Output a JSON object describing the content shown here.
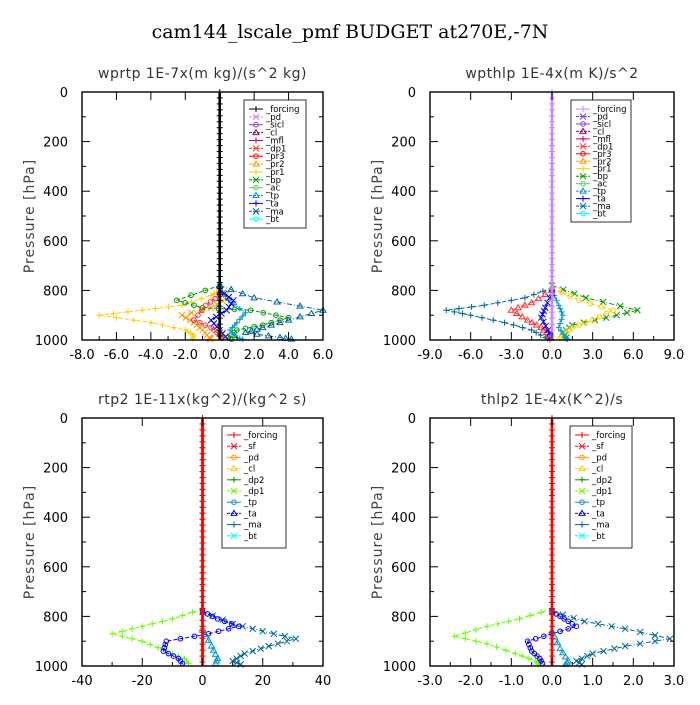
{
  "title": "cam144_lscale_pmf  BUDGET at270E,-7N",
  "colors": {
    "forcing_black": "#000000",
    "forcing_red": "#ff0000",
    "pd": "#ff9900",
    "pd_violet": "#cc88ff",
    "sicl": "#8844cc",
    "cl_purple": "#990066",
    "mfl": "#cc0066",
    "dp1_red": "#ff3333",
    "pr3": "#ff0000",
    "pr2": "#ff9900",
    "pr1": "#ffcc00",
    "bp": "#009900",
    "ac": "#66cc66",
    "tp": "#0099cc",
    "ta": "#0000ff",
    "ma": "#006699",
    "bt": "#00ffff",
    "sf": "#ff0000",
    "cl_yellow": "#ffcc00",
    "dp2": "#009900",
    "dp1_green": "#66ff00"
  },
  "chart_data": [
    {
      "type": "line",
      "title": "wprtp   1E-7x(m kg)/(s^2 kg)",
      "ylabel": "Pressure [hPa]",
      "xlim": [
        -8,
        6
      ],
      "ylim": [
        1000,
        0
      ],
      "xticks": [
        "-8.0",
        "-6.0",
        "-4.0",
        "-2.0",
        "0.0",
        "2.0",
        "4.0",
        "6.0"
      ],
      "xtick_values": [
        -8,
        -6,
        -4,
        -2,
        0,
        2,
        4,
        6
      ],
      "yticks": [
        "0",
        "200",
        "400",
        "600",
        "800",
        "1000"
      ],
      "legend": [
        "_forcing",
        "_pd",
        "_sicl",
        "_cl",
        "_mfl",
        "_dp1",
        "_pr3",
        "_pr2",
        "_pr1",
        "_bp",
        "_ac",
        "_tp",
        "_ta",
        "_ma",
        "_bt"
      ],
      "legend_colors": [
        "#000000",
        "#cc88ff",
        "#8844cc",
        "#990066",
        "#cc0066",
        "#ff3333",
        "#ff0000",
        "#ff9900",
        "#ffcc00",
        "#009900",
        "#66cc66",
        "#0099cc",
        "#0000ff",
        "#006699",
        "#00ffff"
      ],
      "series": [
        {
          "name": "_pr1",
          "color": "#ffcc00",
          "points": [
            [
              0,
              800
            ],
            [
              -0.5,
              820
            ],
            [
              -2.2,
              860
            ],
            [
              -4.5,
              880
            ],
            [
              -7.0,
              900
            ],
            [
              -4.0,
              930
            ],
            [
              -2.0,
              960
            ],
            [
              -1.5,
              980
            ],
            [
              -1.6,
              1000
            ]
          ]
        },
        {
          "name": "_pr2",
          "color": "#ff9900",
          "points": [
            [
              0,
              800
            ],
            [
              0.5,
              830
            ],
            [
              -0.5,
              870
            ],
            [
              -2.2,
              900
            ],
            [
              -1.5,
              930
            ],
            [
              -1.0,
              960
            ],
            [
              -0.6,
              990
            ],
            [
              -0.5,
              1000
            ]
          ]
        },
        {
          "name": "_bp",
          "color": "#009900",
          "points": [
            [
              0,
              780
            ],
            [
              -2.5,
              840
            ],
            [
              -1.0,
              870
            ],
            [
              1.8,
              880
            ],
            [
              4.0,
              910
            ],
            [
              2.5,
              940
            ],
            [
              1.0,
              960
            ],
            [
              0.5,
              990
            ],
            [
              0.8,
              1000
            ]
          ]
        },
        {
          "name": "_ma",
          "color": "#006699",
          "points": [
            [
              0,
              780
            ],
            [
              2.0,
              830
            ],
            [
              6.0,
              880
            ],
            [
              4.0,
              920
            ],
            [
              2.5,
              950
            ],
            [
              1.5,
              970
            ],
            [
              3.5,
              990
            ],
            [
              4.5,
              1000
            ]
          ]
        },
        {
          "name": "_tp",
          "color": "#0099cc",
          "points": [
            [
              0,
              790
            ],
            [
              0.5,
              840
            ],
            [
              1.5,
              890
            ],
            [
              1.0,
              930
            ],
            [
              0.6,
              960
            ],
            [
              1.0,
              990
            ],
            [
              1.5,
              1000
            ]
          ]
        },
        {
          "name": "_ta",
          "color": "#0000ff",
          "points": [
            [
              0,
              800
            ],
            [
              0.8,
              840
            ],
            [
              0.4,
              880
            ],
            [
              -0.5,
              920
            ],
            [
              0.0,
              960
            ],
            [
              0.5,
              1000
            ]
          ]
        },
        {
          "name": "_dp1",
          "color": "#ff3333",
          "points": [
            [
              0,
              820
            ],
            [
              -0.8,
              860
            ],
            [
              -1.5,
              920
            ],
            [
              -0.5,
              950
            ],
            [
              0.0,
              980
            ],
            [
              0.2,
              1000
            ]
          ]
        },
        {
          "name": "_forcing",
          "color": "#000000",
          "points": [
            [
              0,
              0
            ],
            [
              0,
              1000
            ]
          ]
        }
      ]
    },
    {
      "type": "line",
      "title": "wpthlp   1E-4x(m K)/s^2",
      "ylabel": "Pressure [hPa]",
      "xlim": [
        -9,
        9
      ],
      "ylim": [
        1000,
        0
      ],
      "xticks": [
        "-9.0",
        "-6.0",
        "-3.0",
        "0.0",
        "3.0",
        "6.0",
        "9.0"
      ],
      "xtick_values": [
        -9,
        -6,
        -3,
        0,
        3,
        6,
        9
      ],
      "yticks": [
        "0",
        "200",
        "400",
        "600",
        "800",
        "1000"
      ],
      "legend": [
        "_forcing",
        "_pd",
        "_sicl",
        "_cl",
        "_mfl",
        "_dp1",
        "_pr3",
        "_pr2",
        "_pr1",
        "_bp",
        "_ac",
        "_tp",
        "_ta",
        "_ma",
        "_bt"
      ],
      "legend_colors": [
        "#cc88ff",
        "#8844cc",
        "#8844cc",
        "#990066",
        "#cc0066",
        "#ff3333",
        "#ff0000",
        "#ff9900",
        "#ffcc00",
        "#009900",
        "#66cc66",
        "#0099cc",
        "#0000ff",
        "#006699",
        "#00ffff"
      ],
      "series": [
        {
          "name": "_ma",
          "color": "#006699",
          "points": [
            [
              0,
              790
            ],
            [
              -2.0,
              830
            ],
            [
              -5.0,
              860
            ],
            [
              -7.8,
              880
            ],
            [
              -6.0,
              900
            ],
            [
              -3.5,
              930
            ],
            [
              -1.5,
              960
            ],
            [
              -0.5,
              990
            ],
            [
              0.0,
              1000
            ]
          ]
        },
        {
          "name": "_bp",
          "color": "#009900",
          "points": [
            [
              0,
              780
            ],
            [
              2.5,
              830
            ],
            [
              6.3,
              880
            ],
            [
              4.0,
              910
            ],
            [
              1.5,
              940
            ],
            [
              0.8,
              970
            ],
            [
              1.2,
              1000
            ]
          ]
        },
        {
          "name": "_pr1",
          "color": "#ffcc00",
          "points": [
            [
              0,
              790
            ],
            [
              2.0,
              840
            ],
            [
              4.5,
              880
            ],
            [
              3.0,
              920
            ],
            [
              1.5,
              950
            ],
            [
              0.8,
              980
            ],
            [
              0.5,
              1000
            ]
          ]
        },
        {
          "name": "_dp1",
          "color": "#ff3333",
          "points": [
            [
              0,
              800
            ],
            [
              -1.5,
              850
            ],
            [
              -3.0,
              880
            ],
            [
              -1.8,
              920
            ],
            [
              -0.8,
              950
            ],
            [
              -0.2,
              980
            ],
            [
              0.0,
              1000
            ]
          ]
        },
        {
          "name": "_tp",
          "color": "#0099cc",
          "points": [
            [
              0,
              800
            ],
            [
              0.5,
              860
            ],
            [
              0.8,
              900
            ],
            [
              0.5,
              950
            ],
            [
              1.0,
              990
            ],
            [
              1.2,
              1000
            ]
          ]
        },
        {
          "name": "_ta",
          "color": "#0000ff",
          "points": [
            [
              0,
              810
            ],
            [
              -0.5,
              870
            ],
            [
              -0.8,
              910
            ],
            [
              -0.3,
              960
            ],
            [
              0.0,
              1000
            ]
          ]
        },
        {
          "name": "_forcing",
          "color": "#cc88ff",
          "points": [
            [
              0,
              0
            ],
            [
              0,
              1000
            ]
          ]
        }
      ]
    },
    {
      "type": "line",
      "title": "rtp2   1E-11x(kg^2)/(kg^2 s)",
      "ylabel": "Pressure [hPa]",
      "xlim": [
        -40,
        40
      ],
      "ylim": [
        1000,
        0
      ],
      "xticks": [
        "-40",
        "-20",
        "0",
        "20",
        "40"
      ],
      "xtick_values": [
        -40,
        -20,
        0,
        20,
        40
      ],
      "yticks": [
        "0",
        "200",
        "400",
        "600",
        "800",
        "1000"
      ],
      "legend": [
        "_forcing",
        "_sf",
        "_pd",
        "_cl",
        "_dp2",
        "_dp1",
        "_tp",
        "_ta",
        "_ma",
        "_bt"
      ],
      "legend_colors": [
        "#ff0000",
        "#ff0000",
        "#ff9900",
        "#ffcc00",
        "#009900",
        "#66ff00",
        "#0099cc",
        "#0000ff",
        "#006699",
        "#00ffff"
      ],
      "series": [
        {
          "name": "_dp1",
          "color": "#66ff00",
          "points": [
            [
              0,
              770
            ],
            [
              -10,
              810
            ],
            [
              -20,
              840
            ],
            [
              -30,
              870
            ],
            [
              -20,
              900
            ],
            [
              -12,
              940
            ],
            [
              -6,
              970
            ],
            [
              -4,
              1000
            ]
          ]
        },
        {
          "name": "_ma",
          "color": "#006699",
          "points": [
            [
              0,
              780
            ],
            [
              10,
              830
            ],
            [
              20,
              860
            ],
            [
              31,
              890
            ],
            [
              22,
              920
            ],
            [
              14,
              950
            ],
            [
              10,
              980
            ],
            [
              14,
              1000
            ]
          ]
        },
        {
          "name": "_ta",
          "color": "#0000ff",
          "points": [
            [
              0,
              780
            ],
            [
              5,
              810
            ],
            [
              12,
              840
            ],
            [
              2,
              870
            ],
            [
              -12,
              900
            ],
            [
              -13,
              940
            ],
            [
              -8,
              970
            ],
            [
              -6,
              1000
            ]
          ]
        },
        {
          "name": "_tp",
          "color": "#0099cc",
          "points": [
            [
              0,
              850
            ],
            [
              3,
              920
            ],
            [
              5,
              970
            ],
            [
              4,
              1000
            ]
          ]
        },
        {
          "name": "_sf",
          "color": "#ff0000",
          "points": [
            [
              0,
              0
            ],
            [
              0,
              1000
            ]
          ]
        },
        {
          "name": "_forcing",
          "color": "#ff0000",
          "points": [
            [
              0,
              0
            ],
            [
              0,
              1000
            ]
          ]
        }
      ]
    },
    {
      "type": "line",
      "title": "thlp2   1E-4x(K^2)/s",
      "ylabel": "Pressure [hPa]",
      "xlim": [
        -3,
        3
      ],
      "ylim": [
        1000,
        0
      ],
      "xticks": [
        "-3.0",
        "-2.0",
        "-1.0",
        "0.0",
        "1.0",
        "2.0",
        "3.0"
      ],
      "xtick_values": [
        -3,
        -2,
        -1,
        0,
        1,
        2,
        3
      ],
      "yticks": [
        "0",
        "200",
        "400",
        "600",
        "800",
        "1000"
      ],
      "legend": [
        "_forcing",
        "_sf",
        "_pd",
        "_cl",
        "_dp2",
        "_dp1",
        "_tp",
        "_ta",
        "_ma",
        "_bt"
      ],
      "legend_colors": [
        "#ff0000",
        "#ff0000",
        "#ff9900",
        "#ffcc00",
        "#009900",
        "#66ff00",
        "#0099cc",
        "#0000ff",
        "#006699",
        "#00ffff"
      ],
      "series": [
        {
          "name": "_dp1",
          "color": "#66ff00",
          "points": [
            [
              0,
              770
            ],
            [
              -0.8,
              810
            ],
            [
              -1.6,
              840
            ],
            [
              -2.4,
              880
            ],
            [
              -1.6,
              910
            ],
            [
              -0.9,
              950
            ],
            [
              -0.4,
              980
            ],
            [
              -0.3,
              1000
            ]
          ]
        },
        {
          "name": "_ma",
          "color": "#006699",
          "points": [
            [
              0,
              780
            ],
            [
              0.8,
              820
            ],
            [
              1.8,
              850
            ],
            [
              2.9,
              890
            ],
            [
              1.8,
              920
            ],
            [
              1.0,
              950
            ],
            [
              0.6,
              980
            ],
            [
              0.8,
              1000
            ]
          ]
        },
        {
          "name": "_ta",
          "color": "#0000ff",
          "points": [
            [
              0,
              780
            ],
            [
              0.3,
              810
            ],
            [
              0.6,
              840
            ],
            [
              0.0,
              870
            ],
            [
              -0.6,
              900
            ],
            [
              -0.5,
              940
            ],
            [
              -0.3,
              970
            ],
            [
              -0.2,
              1000
            ]
          ]
        },
        {
          "name": "_tp",
          "color": "#0099cc",
          "points": [
            [
              0,
              860
            ],
            [
              0.2,
              930
            ],
            [
              0.4,
              980
            ],
            [
              0.3,
              1000
            ]
          ]
        },
        {
          "name": "_forcing",
          "color": "#ff0000",
          "points": [
            [
              0,
              0
            ],
            [
              0,
              1000
            ]
          ]
        }
      ]
    }
  ]
}
